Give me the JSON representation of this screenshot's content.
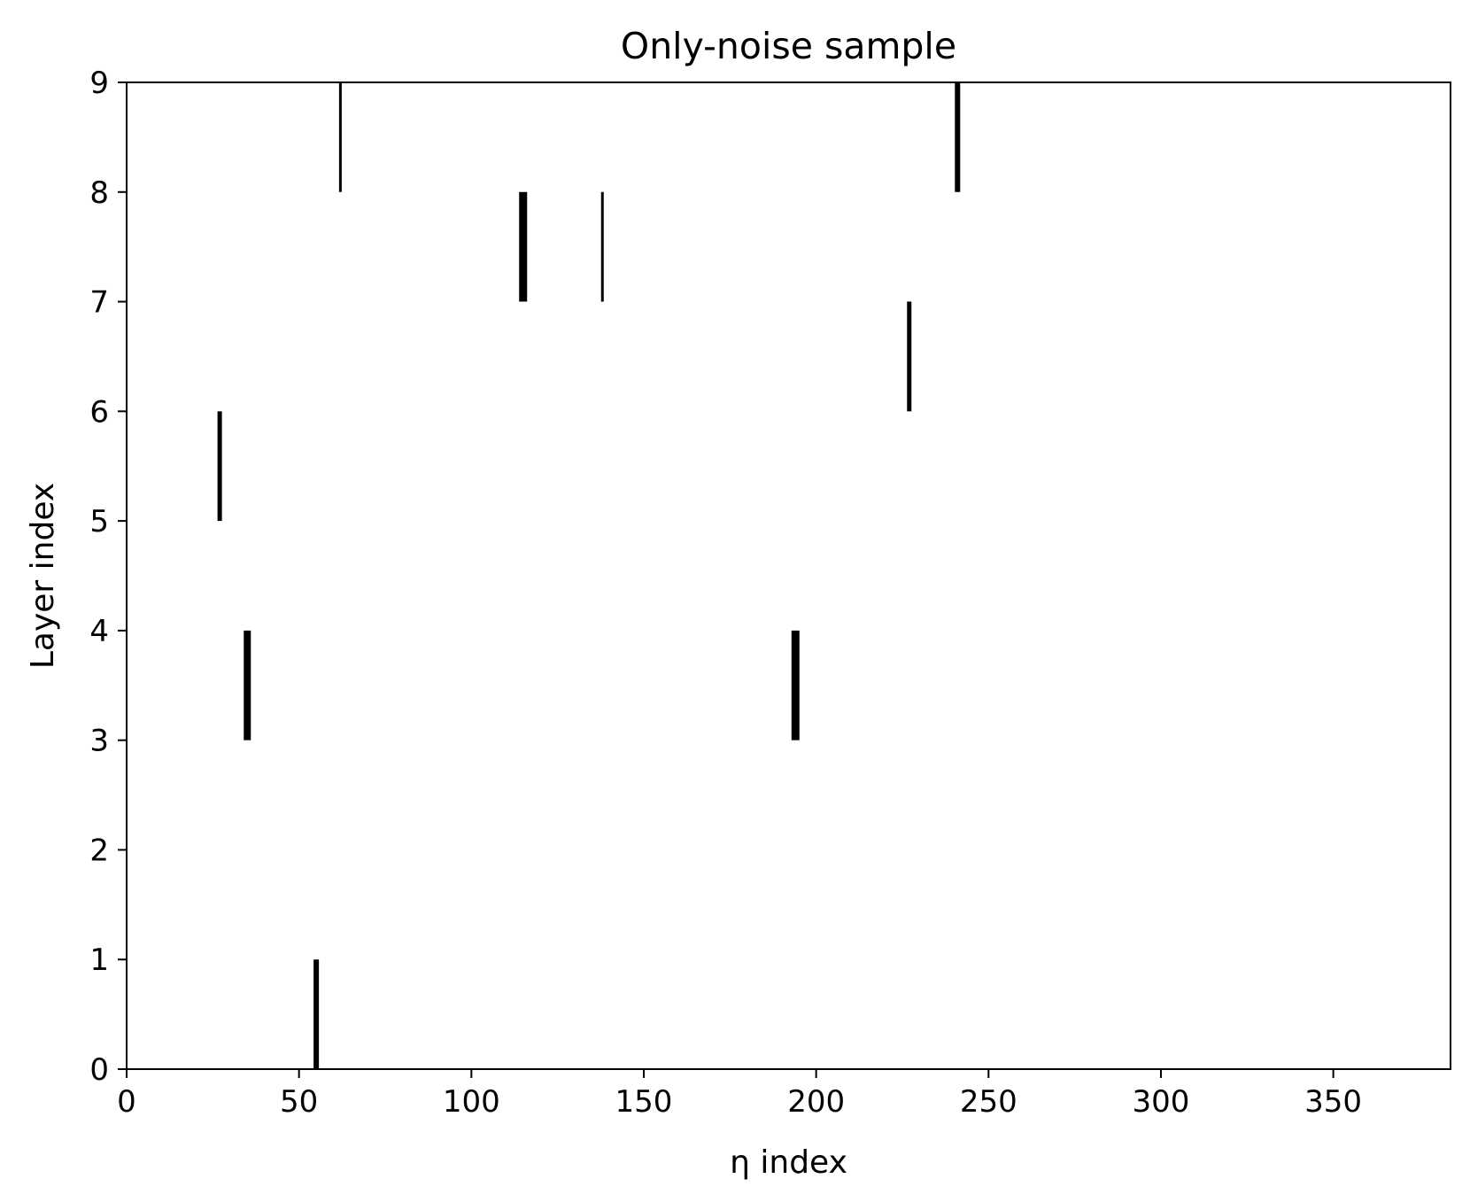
{
  "chart_data": {
    "type": "scatter",
    "title": "Only-noise sample",
    "xlabel": "η index",
    "ylabel": "Layer index",
    "xlim": [
      0,
      384
    ],
    "ylim": [
      0,
      9
    ],
    "xticks": [
      0,
      50,
      100,
      150,
      200,
      250,
      300,
      350
    ],
    "yticks": [
      0,
      1,
      2,
      3,
      4,
      5,
      6,
      7,
      8,
      9
    ],
    "grid": false,
    "legend": "none",
    "colors": {
      "mark": "#000000",
      "axes": "#000000",
      "background": "#ffffff"
    },
    "series": [
      {
        "values": [
          {
            "x": 27,
            "y_start": 5,
            "y_end": 6,
            "weight": 1.0
          },
          {
            "x": 35,
            "y_start": 3,
            "y_end": 4,
            "weight": 1.6
          },
          {
            "x": 55,
            "y_start": 0,
            "y_end": 1,
            "weight": 1.2
          },
          {
            "x": 62,
            "y_start": 8,
            "y_end": 9,
            "weight": 0.6
          },
          {
            "x": 115,
            "y_start": 7,
            "y_end": 8,
            "weight": 1.8
          },
          {
            "x": 138,
            "y_start": 7,
            "y_end": 8,
            "weight": 0.6
          },
          {
            "x": 194,
            "y_start": 3,
            "y_end": 4,
            "weight": 1.8
          },
          {
            "x": 227,
            "y_start": 6,
            "y_end": 7,
            "weight": 1.0
          },
          {
            "x": 241,
            "y_start": 8,
            "y_end": 9,
            "weight": 1.2
          }
        ]
      }
    ]
  }
}
